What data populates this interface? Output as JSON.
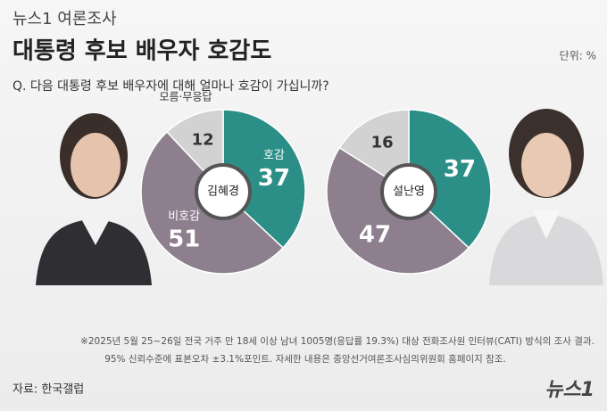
{
  "header": {
    "kicker": "뉴스1 여론조사",
    "title": "대통령 후보 배우자 호감도",
    "unit": "단위: %",
    "question": "Q. 다음 대통령 후보 배우자에 대해 얼마나 호감이 가십니까?"
  },
  "chart_data": [
    {
      "type": "donut",
      "center_label": "김혜경",
      "categories": [
        "호감",
        "비호감",
        "모름·무응답"
      ],
      "values": [
        37,
        51,
        12
      ],
      "colors": [
        "#2b8f87",
        "#8e7f8e",
        "#d3d2d2"
      ]
    },
    {
      "type": "donut",
      "center_label": "설난영",
      "categories": [
        null,
        null,
        null
      ],
      "values": [
        37,
        47,
        16
      ],
      "colors": [
        "#2b8f87",
        "#8e7f8e",
        "#d3d2d2"
      ]
    }
  ],
  "notes": [
    "※2025년 5월 25~26일 전국 거주 만 18세 이상 남녀 1005명(응답률 19.3%) 대상 전화조사원 인터뷰(CATI) 방식의 조사 결과.",
    "95% 신뢰수준에 표본오차 ±3.1%포인트. 자세한 내용은 중앙선거여론조사심의위원회 홈페이지 참조."
  ],
  "source": "자료: 한국갤럽",
  "logo": "뉴스1"
}
